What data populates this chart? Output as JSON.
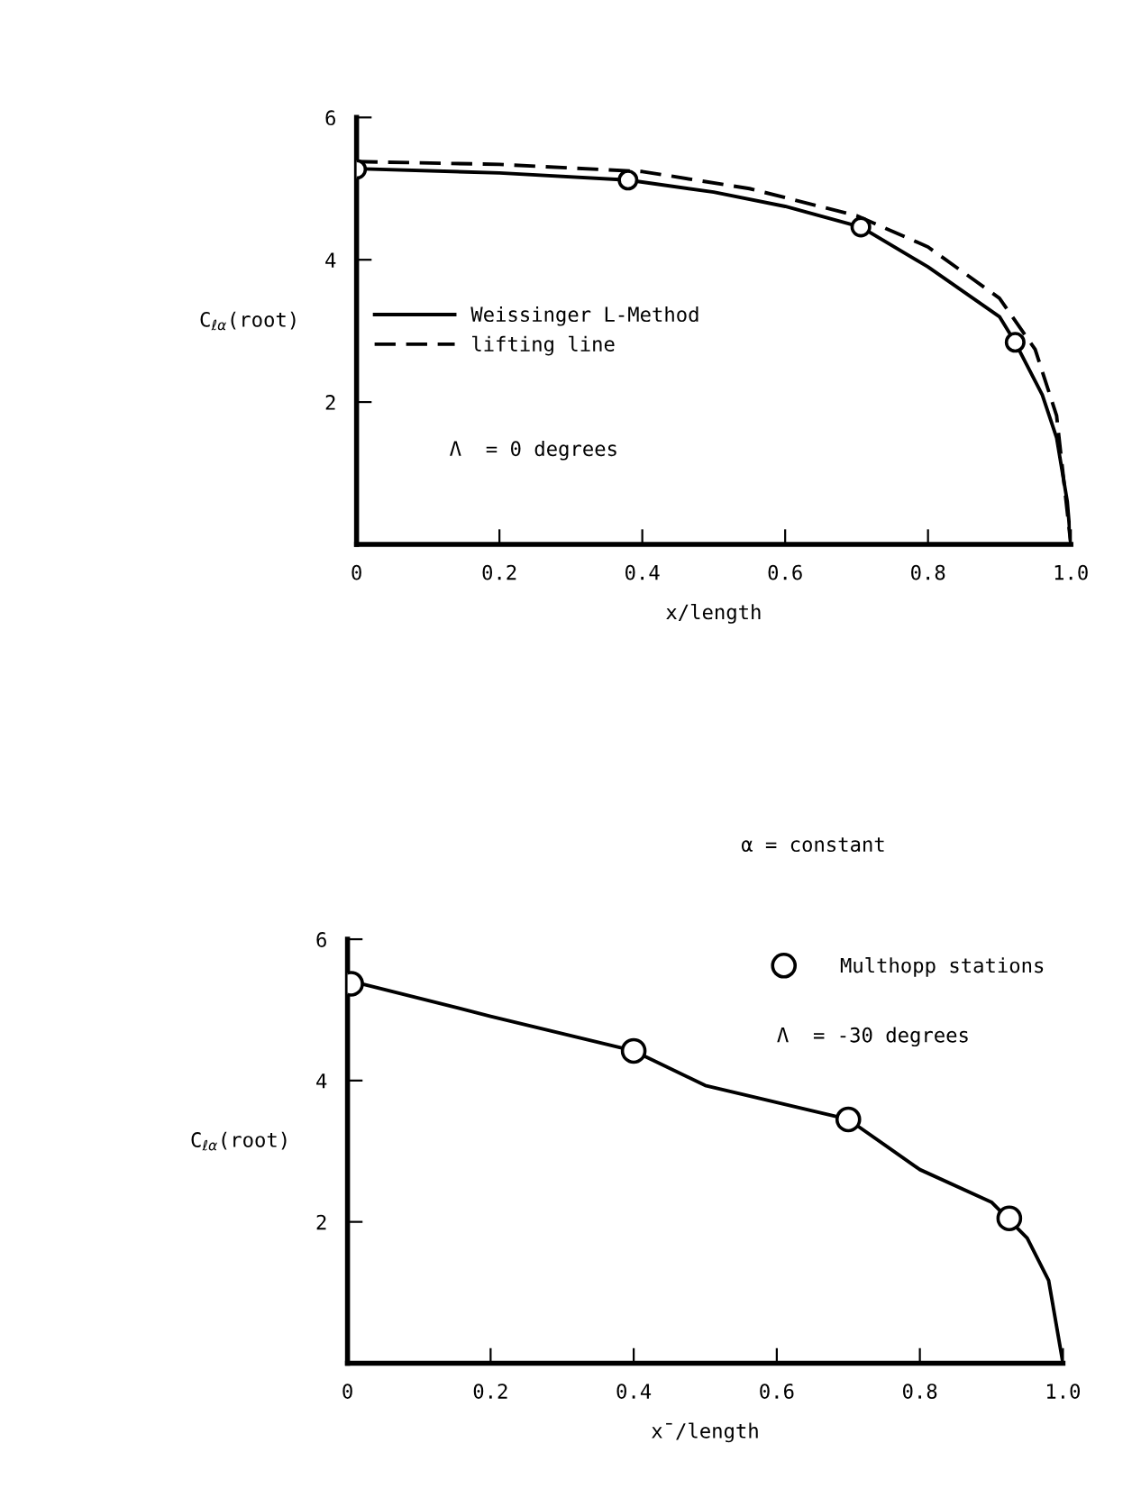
{
  "chart_data": [
    {
      "type": "line",
      "xlabel": "x/length",
      "ylabel": "C$_{ℓα}$(root)",
      "xlim": [
        0,
        1.0
      ],
      "ylim": [
        0,
        6
      ],
      "xticks": [
        0,
        0.2,
        0.4,
        0.6,
        0.8,
        {
          "value": 1,
          "label": "1.0"
        }
      ],
      "yticks": [
        2,
        4,
        6
      ],
      "grid": false,
      "legend": "left",
      "annotations": [
        "Λ  = 0 degrees"
      ],
      "series": [
        {
          "name": "Weissinger L-Method",
          "color": "#000000",
          "line_style": "solid",
          "x": [
            0,
            0.2,
            0.38,
            0.5,
            0.6,
            0.706,
            0.8,
            0.9,
            0.922,
            0.96,
            0.98,
            0.995,
            1.0
          ],
          "values": [
            5.28,
            5.22,
            5.12,
            4.95,
            4.75,
            4.46,
            3.9,
            3.2,
            2.84,
            2.1,
            1.5,
            0.6,
            0
          ]
        },
        {
          "name": "lifting line",
          "color": "#000000",
          "line_style": "dashed",
          "x": [
            0,
            0.2,
            0.4,
            0.55,
            0.7,
            0.8,
            0.9,
            0.95,
            0.98,
            1.0
          ],
          "values": [
            5.38,
            5.34,
            5.24,
            5.0,
            4.62,
            4.18,
            3.46,
            2.74,
            1.81,
            0
          ]
        },
        {
          "type": "scatter",
          "color": "#000000",
          "marker": "circle",
          "x": [
            0,
            0.38,
            0.706,
            0.922
          ],
          "values": [
            5.27,
            5.12,
            4.46,
            2.84
          ]
        }
      ]
    },
    {
      "type": "line",
      "xlabel": "x̄/length",
      "ylabel": "C$_{ℓα}$(root)",
      "xlim": [
        0,
        1.0
      ],
      "ylim": [
        0,
        6
      ],
      "xticks": [
        0,
        0.2,
        0.4,
        0.6,
        0.8,
        {
          "value": 1,
          "label": "1.0"
        }
      ],
      "yticks": [
        2,
        4,
        6
      ],
      "grid": false,
      "legend": "top right",
      "annotations": [
        "α = constant",
        "Λ  = -30 degrees"
      ],
      "series": [
        {
          "color": "#000000",
          "line_style": "solid",
          "x": [
            0,
            0.2,
            0.4,
            0.5,
            0.7,
            0.8,
            0.9,
            0.95,
            0.98,
            1.0
          ],
          "values": [
            5.42,
            4.91,
            4.42,
            3.93,
            3.45,
            2.74,
            2.28,
            1.77,
            1.17,
            0
          ]
        },
        {
          "type": "scatter",
          "name": "Multhopp stations",
          "color": "#000000",
          "marker": "circle",
          "x": [
            0.005,
            0.4,
            0.7,
            0.925
          ],
          "values": [
            5.37,
            4.42,
            3.45,
            2.05
          ]
        }
      ]
    }
  ]
}
